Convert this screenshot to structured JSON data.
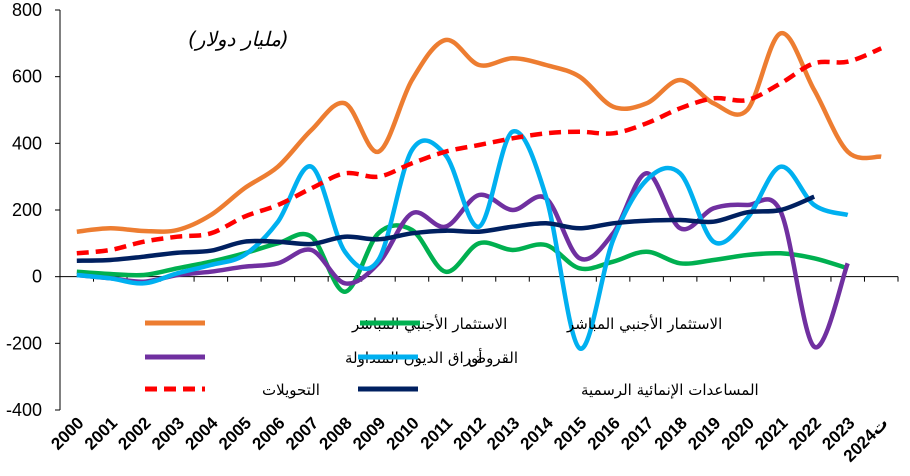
{
  "chart_data": {
    "type": "line",
    "title": "",
    "unit_label": "(مليار دولار)",
    "xlabel": "",
    "ylabel": "",
    "ylim": [
      -400,
      800
    ],
    "yticks": [
      -400,
      -200,
      0,
      200,
      400,
      600,
      800
    ],
    "ytick_labels": [
      "-400",
      "-200",
      "0",
      "200",
      "400",
      "600",
      "800"
    ],
    "categories": [
      "2000",
      "2001",
      "2002",
      "2003",
      "2004",
      "2005",
      "2006",
      "2007",
      "2008",
      "2009",
      "2010",
      "2011",
      "2012",
      "2013",
      "2014",
      "2015",
      "2016",
      "2017",
      "2018",
      "2019",
      "2020",
      "2021",
      "2022",
      "2023",
      "ت2024"
    ],
    "grid": false,
    "series": [
      {
        "key": "fdi_orange",
        "name": "الاستثمار الأجنبي المباشر",
        "color": "#ED7D31",
        "dash": "solid",
        "values": [
          135,
          145,
          137,
          140,
          185,
          265,
          330,
          440,
          520,
          375,
          590,
          710,
          635,
          655,
          635,
          600,
          510,
          520,
          590,
          520,
          500,
          730,
          560,
          375,
          360
        ]
      },
      {
        "key": "fdi_green",
        "name": "الاستثمار الأجنبي المباشر",
        "color": "#00B050",
        "dash": "solid",
        "values": [
          15,
          8,
          5,
          25,
          45,
          70,
          100,
          120,
          -45,
          130,
          140,
          15,
          100,
          80,
          95,
          25,
          45,
          75,
          40,
          50,
          65,
          70,
          55,
          25,
          null
        ]
      },
      {
        "key": "debt",
        "name": "أوراق الديون المتداولة",
        "color": "#7030A0",
        "dash": "solid",
        "values": [
          5,
          -5,
          -15,
          5,
          15,
          30,
          40,
          80,
          -20,
          40,
          190,
          150,
          245,
          200,
          235,
          55,
          130,
          310,
          145,
          205,
          215,
          195,
          -210,
          40,
          null
        ]
      },
      {
        "key": "loans",
        "name": "القروض",
        "color": "#00B0F0",
        "dash": "solid",
        "values": [
          5,
          -5,
          -20,
          10,
          35,
          65,
          165,
          330,
          75,
          50,
          380,
          365,
          150,
          435,
          240,
          -215,
          110,
          290,
          310,
          105,
          175,
          330,
          215,
          185,
          null
        ]
      },
      {
        "key": "remit",
        "name": "التحويلات",
        "color": "#FF0000",
        "dash": "dashed",
        "values": [
          70,
          80,
          105,
          120,
          130,
          180,
          215,
          265,
          310,
          300,
          340,
          375,
          395,
          415,
          430,
          435,
          430,
          460,
          505,
          535,
          530,
          580,
          640,
          645,
          685
        ]
      },
      {
        "key": "oda",
        "name": "المساعدات الإنمائية الرسمية",
        "color": "#002060",
        "dash": "solid",
        "values": [
          48,
          50,
          60,
          72,
          78,
          105,
          105,
          98,
          120,
          112,
          130,
          138,
          135,
          150,
          160,
          145,
          160,
          168,
          170,
          165,
          193,
          200,
          240,
          null,
          null
        ]
      }
    ],
    "legend_position": "lower-center-inside"
  }
}
